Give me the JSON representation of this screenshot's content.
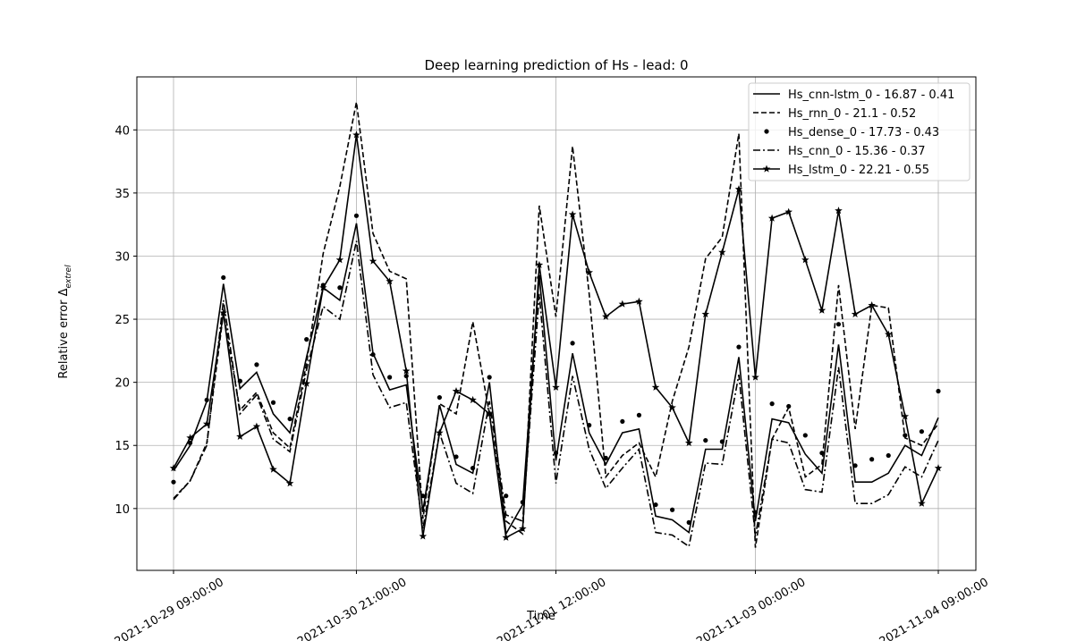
{
  "chart_data": {
    "type": "line",
    "title": "Deep learning prediction of Hs - lead: 0",
    "xlabel": "Time",
    "ylabel": {
      "text": "Relative error Δ",
      "subscript": "extrel"
    },
    "categories": [
      "2021-10-29 09:00:00",
      null,
      null,
      null,
      null,
      null,
      null,
      null,
      null,
      null,
      null,
      "2021-10-30 21:00:00",
      null,
      null,
      null,
      null,
      null,
      null,
      null,
      null,
      null,
      null,
      null,
      "2021-11-01 12:00:00",
      null,
      null,
      null,
      null,
      null,
      null,
      null,
      null,
      null,
      null,
      null,
      "2021-11-03 00:00:00",
      null,
      null,
      null,
      null,
      null,
      null,
      null,
      null,
      null,
      null,
      "2021-11-04 09:00:00"
    ],
    "ylim": [
      5.1,
      44.2
    ],
    "yticks": [
      10,
      15,
      20,
      25,
      30,
      35,
      40
    ],
    "grid": true,
    "legend": "upper right",
    "series": [
      {
        "name": "Hs_cnn-lstm_0 - 16.87 - 0.41",
        "color": "#000000",
        "style": "solid",
        "values": [
          13.0,
          15.0,
          18.5,
          27.8,
          19.5,
          20.8,
          17.5,
          16.0,
          22.0,
          27.5,
          26.5,
          32.6,
          22.3,
          19.4,
          19.8,
          9.8,
          18.2,
          13.5,
          12.8,
          20.0,
          8.0,
          10.3,
          28.5,
          13.8,
          22.3,
          16.0,
          13.5,
          16.0,
          16.3,
          9.4,
          9.1,
          8.1,
          14.7,
          14.7,
          22.0,
          9.0,
          17.1,
          16.8,
          14.3,
          12.8,
          23.0,
          12.1,
          12.1,
          12.8,
          15.0,
          14.2,
          17.2
        ]
      },
      {
        "name": "Hs_rnn_0 - 21.1 - 0.52",
        "color": "#000000",
        "style": "dashed",
        "values": [
          10.8,
          12.2,
          15.2,
          25.5,
          17.8,
          19.2,
          16.0,
          14.8,
          21.5,
          30.2,
          35.5,
          42.2,
          31.8,
          28.8,
          28.2,
          9.2,
          18.3,
          17.5,
          24.8,
          17.5,
          9.0,
          8.0,
          34.0,
          25.2,
          38.7,
          27.0,
          12.5,
          14.2,
          15.2,
          12.5,
          18.5,
          22.8,
          29.8,
          31.5,
          39.7,
          6.9,
          15.5,
          18.0,
          12.5,
          13.5,
          27.7,
          16.3,
          26.1,
          25.9,
          15.6,
          15.0,
          16.7
        ]
      },
      {
        "name": "Hs_dense_0 - 17.73 - 0.43",
        "color": "#000000",
        "style": "dots",
        "values": [
          12.1,
          15.2,
          18.6,
          28.3,
          20.1,
          21.4,
          18.4,
          17.1,
          23.4,
          27.7,
          27.5,
          33.2,
          22.2,
          20.4,
          20.5,
          11.0,
          18.8,
          14.1,
          13.2,
          20.4,
          11.0,
          10.5,
          28.3,
          14.4,
          23.1,
          16.6,
          14.0,
          16.9,
          17.4,
          10.3,
          9.9,
          8.9,
          15.4,
          15.3,
          22.8,
          9.7,
          18.3,
          18.1,
          15.8,
          14.4,
          24.6,
          13.4,
          13.9,
          14.2,
          15.8,
          16.1,
          19.3
        ]
      },
      {
        "name": "Hs_cnn_0 - 15.36 - 0.37",
        "color": "#000000",
        "style": "dashdot",
        "values": [
          10.7,
          12.2,
          15.0,
          26.5,
          17.5,
          19.0,
          15.5,
          14.5,
          21.0,
          26.0,
          25.0,
          31.2,
          20.6,
          18.0,
          18.4,
          8.4,
          16.0,
          12.0,
          11.2,
          18.5,
          9.5,
          9.0,
          27.0,
          12.0,
          20.5,
          14.7,
          11.6,
          13.2,
          14.7,
          8.1,
          7.9,
          7.0,
          13.6,
          13.5,
          20.6,
          7.8,
          15.5,
          15.2,
          11.5,
          11.3,
          21.2,
          10.4,
          10.4,
          11.1,
          13.3,
          12.5,
          15.4
        ]
      },
      {
        "name": "Hs_lstm_0 - 22.21 - 0.55",
        "color": "#000000",
        "style": "solid-star",
        "values": [
          13.2,
          15.6,
          16.7,
          25.5,
          15.7,
          16.5,
          13.1,
          12.0,
          19.9,
          27.5,
          29.7,
          39.6,
          29.6,
          28.0,
          20.9,
          7.8,
          16.0,
          19.3,
          18.6,
          17.5,
          7.7,
          8.4,
          29.3,
          19.6,
          33.3,
          28.7,
          25.2,
          26.2,
          26.4,
          19.6,
          18.0,
          15.2,
          25.4,
          30.3,
          35.3,
          20.4,
          33.0,
          33.5,
          29.7,
          25.7,
          33.6,
          25.4,
          26.1,
          23.8,
          17.3,
          10.4,
          13.2
        ]
      }
    ]
  }
}
